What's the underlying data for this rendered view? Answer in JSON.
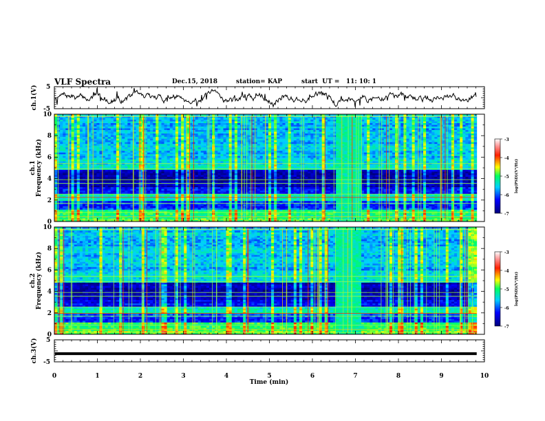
{
  "header": {
    "title": "VLF Spectra",
    "date": "Dec.15, 2018",
    "station": "station= KAP",
    "start": "start  UT =   11: 10: 1"
  },
  "chart_data": [
    {
      "type": "line",
      "ylabel": "ch.1(V)",
      "ylim": [
        -5,
        5
      ],
      "yticks": [
        "5",
        "-5"
      ],
      "xlim": [
        0,
        10
      ],
      "series": [
        {
          "color": "#000000"
        }
      ]
    },
    {
      "type": "heatmap",
      "ylabel_top": "ch.1",
      "ylabel": "Frequency (kHz)",
      "ylim": [
        0,
        10
      ],
      "yticks": [
        "10",
        "8",
        "6",
        "4",
        "2",
        "0"
      ],
      "xlim": [
        0,
        10
      ],
      "data_end_min": 9.82,
      "bright_block_min": [
        6.55,
        7.15
      ],
      "colorbar": {
        "label": "log(PSD)(V²/Hz)",
        "ticks": [
          "-3",
          "-4",
          "-5",
          "-6",
          "-7"
        ],
        "range": [
          -7,
          -3
        ]
      }
    },
    {
      "type": "heatmap",
      "ylabel_top": "ch.2",
      "ylabel": "Frequency (kHz)",
      "ylim": [
        0,
        10
      ],
      "yticks": [
        "10",
        "8",
        "6",
        "4",
        "2",
        "0"
      ],
      "xlim": [
        0,
        10
      ],
      "data_end_min": 9.82,
      "bright_block_min": [
        6.55,
        7.15
      ],
      "colorbar": {
        "label": "log(PSD)(V²/Hz)",
        "ticks": [
          "-3",
          "-4",
          "-5",
          "-6",
          "-7"
        ],
        "range": [
          -7,
          -3
        ]
      }
    },
    {
      "type": "line",
      "ylabel": "ch.3(V)",
      "ylim": [
        -5,
        5
      ],
      "yticks": [
        "5",
        "-5"
      ],
      "xlim": [
        0,
        10
      ],
      "series": [
        {
          "color": "#000000",
          "level": -1.3
        }
      ]
    }
  ],
  "xaxis": {
    "label": "Time  (min)",
    "ticks": [
      "0",
      "1",
      "2",
      "3",
      "4",
      "5",
      "6",
      "7",
      "8",
      "9",
      "10"
    ]
  }
}
